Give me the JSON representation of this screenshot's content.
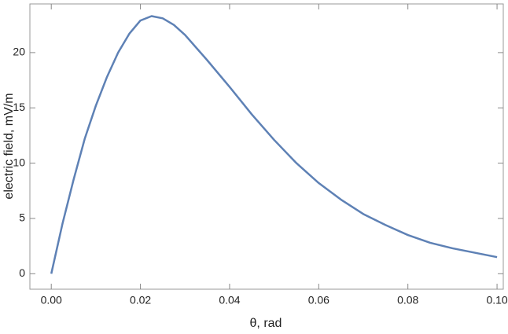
{
  "chart_data": {
    "type": "line",
    "xlabel": "θ, rad",
    "ylabel": "electric field, mV/m",
    "series": [
      {
        "color": "#5e81b5",
        "x": [
          0,
          0.0025,
          0.005,
          0.0075,
          0.01,
          0.0125,
          0.015,
          0.0175,
          0.02,
          0.0225,
          0.025,
          0.0275,
          0.03,
          0.035,
          0.04,
          0.045,
          0.05,
          0.055,
          0.06,
          0.065,
          0.07,
          0.075,
          0.08,
          0.085,
          0.09,
          0.095,
          0.1
        ],
        "values": [
          0,
          4.5,
          8.5,
          12.2,
          15.2,
          17.8,
          20.0,
          21.7,
          22.9,
          23.3,
          23.1,
          22.5,
          21.6,
          19.3,
          16.9,
          14.4,
          12.1,
          10.0,
          8.2,
          6.7,
          5.4,
          4.4,
          3.5,
          2.8,
          2.3,
          1.9,
          1.5
        ]
      }
    ],
    "xlim": [
      -0.0048,
      0.1014
    ],
    "ylim": [
      -1.4,
      24.4
    ],
    "xticks": [
      {
        "value": 0,
        "label": "0.00"
      },
      {
        "value": 0.02,
        "label": "0.02"
      },
      {
        "value": 0.04,
        "label": "0.04"
      },
      {
        "value": 0.06,
        "label": "0.06"
      },
      {
        "value": 0.08,
        "label": "0.08"
      },
      {
        "value": 0.1,
        "label": "0.10"
      }
    ],
    "yticks": [
      0,
      5,
      10,
      15,
      20
    ]
  }
}
